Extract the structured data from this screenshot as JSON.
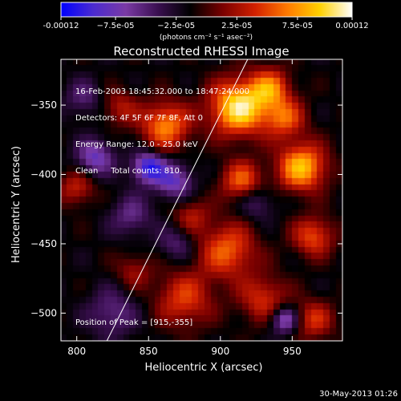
{
  "colorbar": {
    "tick_labels": [
      "-0.00012",
      "−7.5e-05",
      "−2.5e-05",
      "2.5e-05",
      "7.5e-05",
      "0.00012"
    ],
    "tick_values": [
      -0.00012,
      -7.5e-05,
      -2.5e-05,
      2.5e-05,
      7.5e-05,
      0.00012
    ],
    "range": [
      -0.00012,
      0.00012
    ],
    "unit_label": "(photons cm⁻² s⁻¹ asec⁻²)",
    "stops": [
      "#0000ff",
      "#4b2bd0",
      "#7a3aa5",
      "#3a0f50",
      "#000000",
      "#7a0000",
      "#d22000",
      "#ff7a00",
      "#ffd000",
      "#ffffff"
    ]
  },
  "chart_data": {
    "type": "heatmap",
    "title": "Reconstructed RHESSI Image",
    "xlabel": "Heliocentric X (arcsec)",
    "ylabel": "Heliocentric Y (arcsec)",
    "xlim": [
      789,
      985
    ],
    "ylim": [
      -520,
      -317
    ],
    "x_ticks": [
      800,
      850,
      900,
      950
    ],
    "y_ticks": [
      -350,
      -400,
      -450,
      -500
    ],
    "x_tick_labels": [
      "800",
      "850",
      "900",
      "950"
    ],
    "y_tick_labels": [
      "−350",
      "−400",
      "−450",
      "−500"
    ],
    "peak": [
      915,
      -355
    ],
    "limb_line": [
      [
        821,
        -520
      ],
      [
        919,
        -317
      ]
    ],
    "features": [
      {
        "x": 913,
        "y": -352,
        "amp": 1.0,
        "w": 14
      },
      {
        "x": 935,
        "y": -338,
        "amp": 0.6,
        "w": 10
      },
      {
        "x": 957,
        "y": -395,
        "amp": 0.85,
        "w": 12
      },
      {
        "x": 945,
        "y": -360,
        "amp": 0.55,
        "w": 10
      },
      {
        "x": 915,
        "y": -405,
        "amp": 0.6,
        "w": 10
      },
      {
        "x": 862,
        "y": -365,
        "amp": 0.7,
        "w": 12
      },
      {
        "x": 830,
        "y": -352,
        "amp": 0.35,
        "w": 9
      },
      {
        "x": 800,
        "y": -410,
        "amp": 0.4,
        "w": 9
      },
      {
        "x": 905,
        "y": -455,
        "amp": 0.6,
        "w": 14
      },
      {
        "x": 875,
        "y": -490,
        "amp": 0.5,
        "w": 14
      },
      {
        "x": 930,
        "y": -490,
        "amp": 0.45,
        "w": 12
      },
      {
        "x": 965,
        "y": -445,
        "amp": 0.55,
        "w": 10
      },
      {
        "x": 965,
        "y": -505,
        "amp": 0.45,
        "w": 10
      },
      {
        "x": 880,
        "y": -430,
        "amp": 0.35,
        "w": 9
      },
      {
        "x": 840,
        "y": -470,
        "amp": 0.3,
        "w": 9
      },
      {
        "x": 850,
        "y": -395,
        "amp": -0.75,
        "w": 8
      },
      {
        "x": 868,
        "y": -405,
        "amp": -0.55,
        "w": 9
      },
      {
        "x": 813,
        "y": -388,
        "amp": -0.55,
        "w": 9
      },
      {
        "x": 945,
        "y": -505,
        "amp": -0.6,
        "w": 7
      },
      {
        "x": 825,
        "y": -500,
        "amp": -0.35,
        "w": 12
      },
      {
        "x": 838,
        "y": -430,
        "amp": -0.35,
        "w": 10
      },
      {
        "x": 925,
        "y": -420,
        "amp": -0.3,
        "w": 9
      },
      {
        "x": 805,
        "y": -345,
        "amp": -0.3,
        "w": 9
      },
      {
        "x": 870,
        "y": -450,
        "amp": -0.3,
        "w": 9
      }
    ]
  },
  "info": {
    "line1": "16-Feb-2003 18:45:32.000 to 18:47:24.000",
    "line2": "Detectors: 4F 5F 6F 7F 8F, Att 0",
    "line3": "Energy Range: 12.0 - 25.0 keV",
    "line4": "Clean     Total counts: 810.",
    "peak_text": "Position of Peak = [915,-355]"
  },
  "date_stamp": "30-May-2013 01:26"
}
